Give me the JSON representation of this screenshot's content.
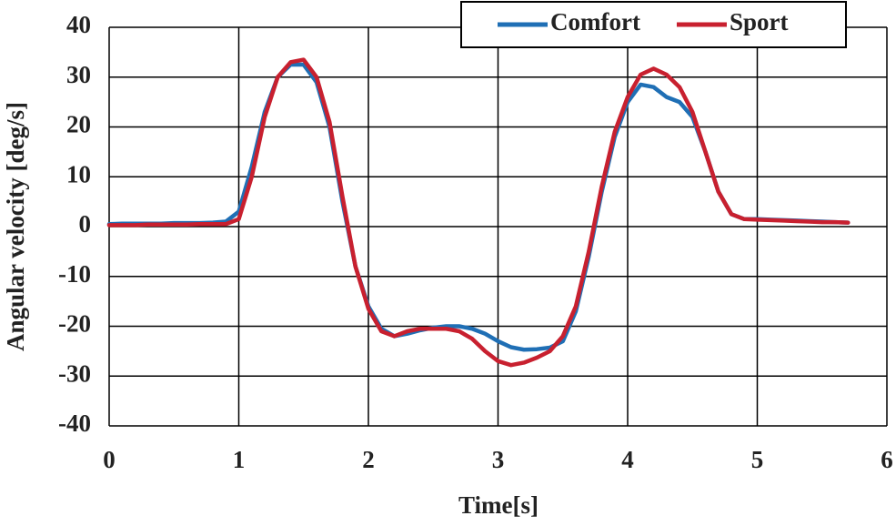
{
  "chart_data": {
    "type": "line",
    "x_label": "Time[s]",
    "y_label": "Angular velocity [deg/s]",
    "x": [
      0,
      0.1,
      0.2,
      0.3,
      0.4,
      0.5,
      0.6,
      0.7,
      0.8,
      0.9,
      1.0,
      1.1,
      1.2,
      1.3,
      1.4,
      1.5,
      1.6,
      1.7,
      1.8,
      1.9,
      2.0,
      2.1,
      2.2,
      2.3,
      2.4,
      2.5,
      2.6,
      2.7,
      2.8,
      2.9,
      3.0,
      3.1,
      3.2,
      3.3,
      3.4,
      3.5,
      3.6,
      3.7,
      3.8,
      3.9,
      4.0,
      4.1,
      4.2,
      4.3,
      4.4,
      4.5,
      4.6,
      4.7,
      4.8,
      4.9,
      5.0,
      5.1,
      5.2,
      5.3,
      5.4,
      5.5,
      5.6,
      5.7
    ],
    "series": [
      {
        "name": "Comfort",
        "color": "#1f6fb5",
        "values": [
          0.5,
          0.6,
          0.6,
          0.6,
          0.6,
          0.7,
          0.7,
          0.7,
          0.8,
          1.0,
          3,
          12,
          23,
          30,
          32.5,
          32.5,
          29,
          20,
          5,
          -8,
          -16,
          -20.5,
          -22,
          -21.5,
          -20.8,
          -20.3,
          -20,
          -20,
          -20.5,
          -21.5,
          -23,
          -24.2,
          -24.7,
          -24.6,
          -24.3,
          -23,
          -17,
          -6,
          7,
          18,
          25,
          28.5,
          28,
          26,
          25,
          22,
          15,
          7,
          2.5,
          1.5,
          1.5,
          1.4,
          1.3,
          1.2,
          1.1,
          1.0,
          0.9,
          0.8
        ]
      },
      {
        "name": "Sport",
        "color": "#c8202f",
        "values": [
          0.3,
          0.3,
          0.3,
          0.4,
          0.4,
          0.4,
          0.4,
          0.5,
          0.5,
          0.5,
          1.5,
          10,
          22,
          30,
          33,
          33.5,
          30,
          21,
          6,
          -8,
          -16.5,
          -21,
          -22,
          -21,
          -20.5,
          -20.5,
          -20.5,
          -21,
          -22.5,
          -25,
          -27,
          -27.8,
          -27.3,
          -26.3,
          -25,
          -22,
          -16,
          -5,
          8,
          19,
          26,
          30.5,
          31.7,
          30.5,
          28,
          23,
          15,
          7,
          2.5,
          1.5,
          1.4,
          1.3,
          1.2,
          1.1,
          1.0,
          0.9,
          0.9,
          0.8
        ]
      }
    ],
    "xlim": [
      0,
      6
    ],
    "xticks": [
      0,
      1,
      2,
      3,
      4,
      5,
      6
    ],
    "ylim": [
      -40,
      40
    ],
    "yticks": [
      -40,
      -30,
      -20,
      -10,
      0,
      10,
      20,
      30,
      40
    ],
    "grid": true,
    "legend": "top-right"
  }
}
